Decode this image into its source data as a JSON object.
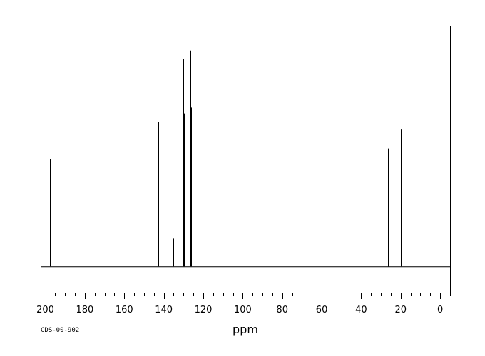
{
  "chart_data": {
    "type": "line",
    "subtype": "nmr-stick-spectrum",
    "title": "",
    "xlabel": "ppm",
    "ylabel": "",
    "source_id": "CDS-00-902",
    "x_reversed": true,
    "xlim": [
      202,
      -5
    ],
    "ylim": [
      -0.12,
      1.1
    ],
    "x_ticks_major": [
      200,
      180,
      160,
      140,
      120,
      100,
      80,
      60,
      40,
      20,
      0
    ],
    "x_tick_labels": [
      "200",
      "180",
      "160",
      "140",
      "120",
      "100",
      "80",
      "60",
      "40",
      "20",
      "0"
    ],
    "x_ticks_minor_step": 5,
    "grid": false,
    "legend": "none",
    "line_color": "#000000",
    "peaks": [
      {
        "x": 197.5,
        "y": 0.49
      },
      {
        "x": 142.6,
        "y": 0.66
      },
      {
        "x": 142.2,
        "y": 0.46
      },
      {
        "x": 136.9,
        "y": 0.69
      },
      {
        "x": 135.4,
        "y": 0.52
      },
      {
        "x": 135.0,
        "y": 0.13
      },
      {
        "x": 130.3,
        "y": 1.0
      },
      {
        "x": 130.0,
        "y": 0.95
      },
      {
        "x": 129.7,
        "y": 0.7
      },
      {
        "x": 126.6,
        "y": 0.99
      },
      {
        "x": 126.3,
        "y": 0.73
      },
      {
        "x": 26.6,
        "y": 0.54
      },
      {
        "x": 26.3,
        "y": 0.14
      },
      {
        "x": 19.8,
        "y": 0.63
      },
      {
        "x": 19.5,
        "y": 0.6
      }
    ]
  }
}
